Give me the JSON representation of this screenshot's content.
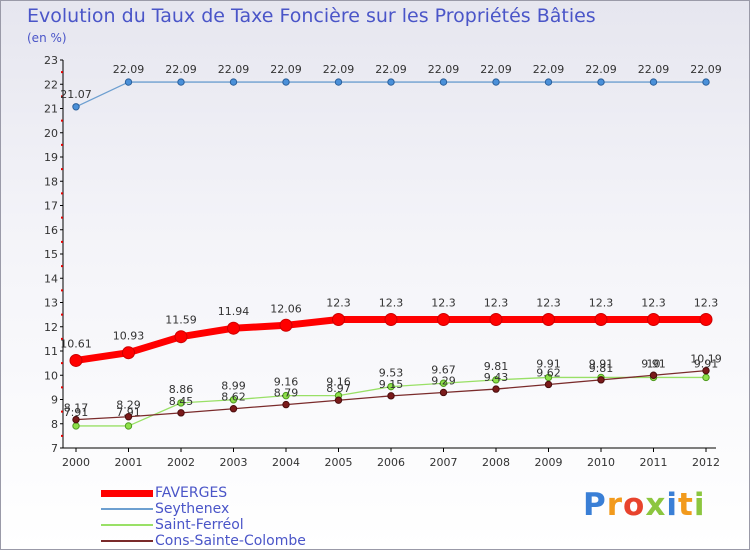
{
  "chart_data": {
    "type": "line",
    "title": "Evolution du Taux de Taxe Foncière sur les Propriétés Bâties",
    "subtitle": "(en %)",
    "xlabel": "",
    "ylabel": "",
    "ylim": [
      7,
      23
    ],
    "yticks": [
      "7",
      "8",
      "9",
      "10",
      "11",
      "12",
      "13",
      "14",
      "15",
      "16",
      "17",
      "18",
      "19",
      "20",
      "21",
      "22",
      "23"
    ],
    "categories": [
      "2000",
      "2001",
      "2002",
      "2003",
      "2004",
      "2005",
      "2006",
      "2007",
      "2008",
      "2009",
      "2010",
      "2011",
      "2012"
    ],
    "grid": false,
    "legend_position": "bottom-left",
    "series": [
      {
        "name": "FAVERGES",
        "color": "#ff0000",
        "values": [
          10.61,
          10.93,
          11.59,
          11.94,
          12.06,
          12.3,
          12.3,
          12.3,
          12.3,
          12.3,
          12.3,
          12.3,
          12.3
        ],
        "labels": [
          "10.61",
          "10.93",
          "11.59",
          "11.94",
          "12.06",
          "12.3",
          "12.3",
          "12.3",
          "12.3",
          "12.3",
          "12.3",
          "12.3",
          "12.3"
        ]
      },
      {
        "name": "Seythenex",
        "color": "#6d9fd0",
        "values": [
          21.07,
          22.09,
          22.09,
          22.09,
          22.09,
          22.09,
          22.09,
          22.09,
          22.09,
          22.09,
          22.09,
          22.09,
          22.09
        ],
        "labels": [
          "21.07",
          "22.09",
          "22.09",
          "22.09",
          "22.09",
          "22.09",
          "22.09",
          "22.09",
          "22.09",
          "22.09",
          "22.09",
          "22.09",
          "22.09"
        ]
      },
      {
        "name": "Saint-Ferréol",
        "color": "#99e066",
        "values": [
          7.91,
          7.91,
          8.86,
          8.99,
          9.16,
          9.16,
          9.53,
          9.67,
          9.81,
          9.91,
          9.91,
          9.91,
          9.91
        ],
        "labels": [
          "7.91",
          "7.91",
          "8.86",
          "8.99",
          "9.16",
          "9.16",
          "9.53",
          "9.67",
          "9.81",
          "9.91",
          "9.91",
          "9.91",
          "9.91"
        ]
      },
      {
        "name": "Cons-Sainte-Colombe",
        "color": "#7a2b2b",
        "values": [
          8.17,
          8.29,
          8.45,
          8.62,
          8.79,
          8.97,
          9.15,
          9.29,
          9.43,
          9.62,
          9.81,
          10.0,
          10.19
        ],
        "labels": [
          "8.17",
          "8.29",
          "8.45",
          "8.62",
          "8.79",
          "8.97",
          "9.15",
          "9.29",
          "9.43",
          "9.62",
          "9.81",
          "10",
          "10.19"
        ]
      }
    ]
  },
  "logo": {
    "letters": [
      "P",
      "r",
      "o",
      "x",
      "i",
      "t",
      "i"
    ],
    "colors": [
      "#3a7fd6",
      "#f29a1c",
      "#e8432d",
      "#8cc63f",
      "#3a7fd6",
      "#f29a1c",
      "#8cc63f"
    ]
  }
}
